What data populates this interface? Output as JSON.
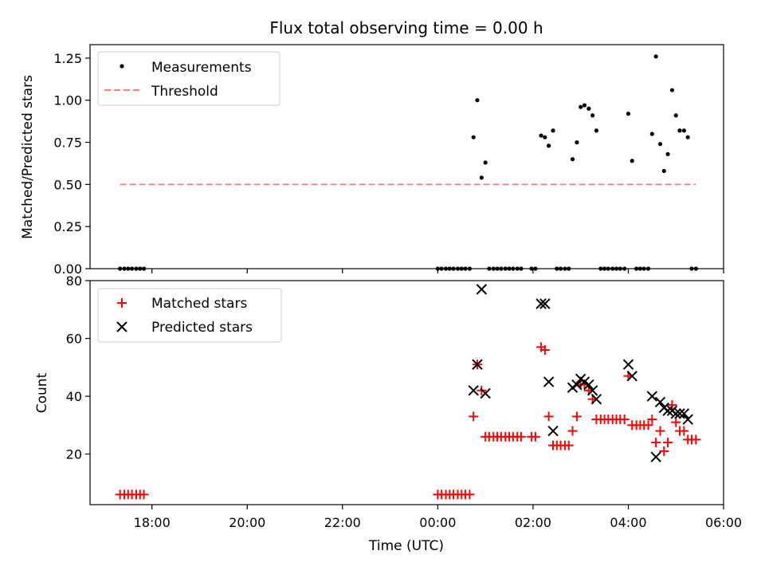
{
  "chart_data": [
    {
      "type": "scatter",
      "title": "Flux total observing time = 0.00 h",
      "xlabel": "",
      "ylabel": "Matched/Predicted stars",
      "ylim": [
        0,
        1.33
      ],
      "yticks": [
        0.0,
        0.25,
        0.5,
        0.75,
        1.0,
        1.25
      ],
      "ytick_labels": [
        "0.00",
        "0.25",
        "0.50",
        "0.75",
        "1.00",
        "1.25"
      ],
      "legend": {
        "position": "top-left",
        "entries": [
          "Measurements",
          "Threshold"
        ]
      },
      "series": [
        {
          "name": "Measurements",
          "marker": "dot",
          "color": "#000000",
          "points": [
            [
              17.33,
              0
            ],
            [
              17.42,
              0
            ],
            [
              17.5,
              0
            ],
            [
              17.58,
              0
            ],
            [
              17.67,
              0
            ],
            [
              17.75,
              0
            ],
            [
              17.83,
              0
            ],
            [
              24.0,
              0
            ],
            [
              24.08,
              0
            ],
            [
              24.17,
              0
            ],
            [
              24.25,
              0
            ],
            [
              24.33,
              0
            ],
            [
              24.42,
              0
            ],
            [
              24.5,
              0
            ],
            [
              24.58,
              0
            ],
            [
              24.67,
              0
            ],
            [
              24.75,
              0.78
            ],
            [
              24.83,
              1.0
            ],
            [
              24.92,
              0.54
            ],
            [
              25.0,
              0.63
            ],
            [
              25.08,
              0
            ],
            [
              25.17,
              0
            ],
            [
              25.25,
              0
            ],
            [
              25.33,
              0
            ],
            [
              25.42,
              0
            ],
            [
              25.5,
              0
            ],
            [
              25.58,
              0
            ],
            [
              25.67,
              0
            ],
            [
              25.75,
              0
            ],
            [
              25.97,
              0
            ],
            [
              26.05,
              0
            ],
            [
              26.17,
              0.79
            ],
            [
              26.25,
              0.78
            ],
            [
              26.33,
              0.73
            ],
            [
              26.42,
              0.82
            ],
            [
              26.5,
              0
            ],
            [
              26.58,
              0
            ],
            [
              26.67,
              0
            ],
            [
              26.75,
              0
            ],
            [
              26.83,
              0.65
            ],
            [
              26.92,
              0.75
            ],
            [
              27.0,
              0.96
            ],
            [
              27.08,
              0.97
            ],
            [
              27.17,
              0.95
            ],
            [
              27.25,
              0.91
            ],
            [
              27.33,
              0.82
            ],
            [
              27.42,
              0
            ],
            [
              27.5,
              0
            ],
            [
              27.58,
              0
            ],
            [
              27.67,
              0
            ],
            [
              27.75,
              0
            ],
            [
              27.83,
              0
            ],
            [
              27.92,
              0
            ],
            [
              28.0,
              0.92
            ],
            [
              28.08,
              0.64
            ],
            [
              28.17,
              0
            ],
            [
              28.25,
              0
            ],
            [
              28.33,
              0
            ],
            [
              28.42,
              0
            ],
            [
              28.5,
              0.8
            ],
            [
              28.58,
              1.26
            ],
            [
              28.67,
              0.74
            ],
            [
              28.75,
              0.58
            ],
            [
              28.83,
              0.68
            ],
            [
              28.92,
              1.06
            ],
            [
              29.0,
              0.91
            ],
            [
              29.08,
              0.82
            ],
            [
              29.17,
              0.82
            ],
            [
              29.25,
              0.78
            ],
            [
              29.33,
              0
            ],
            [
              29.42,
              0
            ]
          ]
        },
        {
          "name": "Threshold",
          "marker": "dashed-line",
          "color": "#ff7f7f",
          "x": [
            17.33,
            29.42
          ],
          "y": [
            0.5,
            0.5
          ]
        }
      ]
    },
    {
      "type": "scatter",
      "title": "",
      "xlabel": "Time (UTC)",
      "ylabel": "Count",
      "ylim": [
        2.5,
        80
      ],
      "yticks": [
        20,
        40,
        60,
        80
      ],
      "ytick_labels": [
        "20",
        "40",
        "60",
        "80"
      ],
      "xlim": [
        16.7,
        30.0
      ],
      "xticks": [
        18,
        20,
        22,
        24,
        26,
        28,
        30
      ],
      "xtick_labels": [
        "18:00",
        "20:00",
        "22:00",
        "00:00",
        "02:00",
        "04:00",
        "06:00"
      ],
      "legend": {
        "position": "top-left",
        "entries": [
          "Matched stars",
          "Predicted stars"
        ]
      },
      "series": [
        {
          "name": "Matched stars",
          "marker": "plus",
          "color": "#ff0000",
          "points": [
            [
              17.33,
              6
            ],
            [
              17.42,
              6
            ],
            [
              17.5,
              6
            ],
            [
              17.58,
              6
            ],
            [
              17.67,
              6
            ],
            [
              17.75,
              6
            ],
            [
              17.83,
              6
            ],
            [
              24.0,
              6
            ],
            [
              24.08,
              6
            ],
            [
              24.17,
              6
            ],
            [
              24.25,
              6
            ],
            [
              24.33,
              6
            ],
            [
              24.42,
              6
            ],
            [
              24.5,
              6
            ],
            [
              24.58,
              6
            ],
            [
              24.67,
              6
            ],
            [
              24.75,
              33
            ],
            [
              24.83,
              51
            ],
            [
              24.92,
              42
            ],
            [
              25.0,
              26
            ],
            [
              25.08,
              26
            ],
            [
              25.17,
              26
            ],
            [
              25.25,
              26
            ],
            [
              25.33,
              26
            ],
            [
              25.42,
              26
            ],
            [
              25.5,
              26
            ],
            [
              25.58,
              26
            ],
            [
              25.67,
              26
            ],
            [
              25.75,
              26
            ],
            [
              25.97,
              26
            ],
            [
              26.05,
              26
            ],
            [
              26.17,
              57
            ],
            [
              26.25,
              56
            ],
            [
              26.33,
              33
            ],
            [
              26.42,
              23
            ],
            [
              26.5,
              23
            ],
            [
              26.58,
              23
            ],
            [
              26.67,
              23
            ],
            [
              26.75,
              23
            ],
            [
              26.83,
              28
            ],
            [
              26.92,
              33
            ],
            [
              27.0,
              44
            ],
            [
              27.08,
              44
            ],
            [
              27.17,
              42
            ],
            [
              27.25,
              39
            ],
            [
              27.33,
              32
            ],
            [
              27.42,
              32
            ],
            [
              27.5,
              32
            ],
            [
              27.58,
              32
            ],
            [
              27.67,
              32
            ],
            [
              27.75,
              32
            ],
            [
              27.83,
              32
            ],
            [
              27.92,
              32
            ],
            [
              28.0,
              47
            ],
            [
              28.08,
              30
            ],
            [
              28.17,
              30
            ],
            [
              28.25,
              30
            ],
            [
              28.33,
              30
            ],
            [
              28.42,
              30
            ],
            [
              28.5,
              32
            ],
            [
              28.58,
              24
            ],
            [
              28.67,
              28
            ],
            [
              28.75,
              21
            ],
            [
              28.83,
              24
            ],
            [
              28.92,
              37
            ],
            [
              29.0,
              31
            ],
            [
              29.08,
              28
            ],
            [
              29.17,
              28
            ],
            [
              29.25,
              25
            ],
            [
              29.33,
              25
            ],
            [
              29.42,
              25
            ]
          ]
        },
        {
          "name": "Predicted stars",
          "marker": "x",
          "color": "#000000",
          "points": [
            [
              24.75,
              42
            ],
            [
              24.83,
              51
            ],
            [
              24.92,
              77
            ],
            [
              25.0,
              41
            ],
            [
              26.17,
              72
            ],
            [
              26.25,
              72
            ],
            [
              26.33,
              45
            ],
            [
              26.42,
              28
            ],
            [
              26.83,
              43
            ],
            [
              26.92,
              44
            ],
            [
              27.0,
              46
            ],
            [
              27.08,
              45
            ],
            [
              27.17,
              44
            ],
            [
              27.25,
              42
            ],
            [
              27.33,
              39
            ],
            [
              28.0,
              51
            ],
            [
              28.08,
              47
            ],
            [
              28.5,
              40
            ],
            [
              28.58,
              19
            ],
            [
              28.67,
              38
            ],
            [
              28.75,
              36
            ],
            [
              28.83,
              35
            ],
            [
              28.92,
              35
            ],
            [
              29.0,
              34
            ],
            [
              29.08,
              34
            ],
            [
              29.17,
              34
            ],
            [
              29.25,
              32
            ]
          ]
        }
      ]
    }
  ]
}
